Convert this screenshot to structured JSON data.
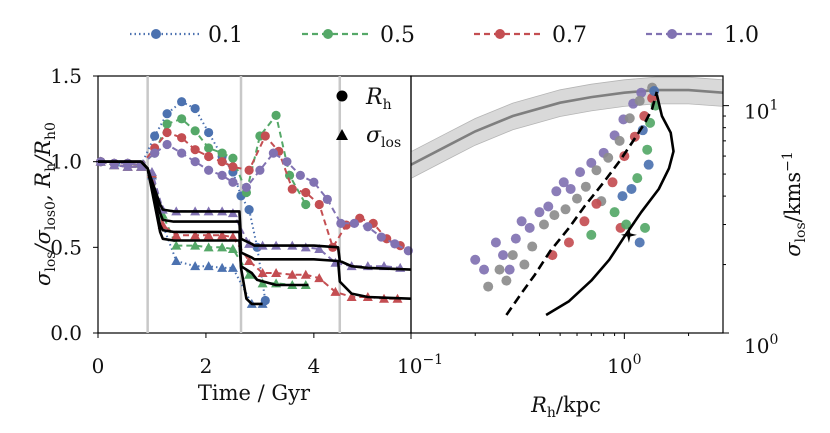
{
  "chart_data": [
    {
      "type": "line",
      "panel": "left",
      "xlabel": "Time / Gyr",
      "ylabel_parts": [
        "σ",
        "los",
        "/σ",
        "los0",
        ", R",
        "h",
        "/R",
        "h0"
      ],
      "xlim": [
        0,
        5.8
      ],
      "ylim": [
        0.0,
        1.5
      ],
      "xticks": [
        0,
        2,
        4
      ],
      "xtick_labels": [
        "0",
        "2",
        "4"
      ],
      "yticks": [
        0.0,
        0.5,
        1.0,
        1.5
      ],
      "ytick_labels": [
        "0.0",
        "0.5",
        "1.0",
        "1.5"
      ],
      "pericentres": [
        0.92,
        2.65,
        4.48
      ],
      "legend_inner": {
        "rh_label": "R",
        "rh_sub": "h",
        "sig_label": "σ",
        "sig_sub": "los"
      },
      "legend_top": [
        {
          "label": "0.1",
          "color": "#4c72b0",
          "style": "dotted"
        },
        {
          "label": "0.5",
          "color": "#55a868",
          "style": "dashed"
        },
        {
          "label": "0.7",
          "color": "#c44e52",
          "style": "dashed"
        },
        {
          "label": "1.0",
          "color": "#8172b2",
          "style": "dashed"
        }
      ],
      "series": [
        {
          "name": "0.1",
          "color": "#4c72b0",
          "style": "dotted",
          "marker": "circle",
          "x": [
            0.05,
            0.3,
            0.55,
            0.8,
            1.05,
            1.28,
            1.55,
            1.8,
            2.05,
            2.3,
            2.5,
            2.65,
            2.8,
            2.95,
            3.1
          ],
          "y": [
            1.0,
            0.99,
            0.99,
            0.98,
            1.15,
            1.28,
            1.35,
            1.31,
            1.17,
            1.03,
            0.94,
            0.8,
            0.72,
            0.5,
            0.19
          ]
        },
        {
          "name": "0.1",
          "color": "#4c72b0",
          "style": "dotted",
          "marker": "triangle",
          "x": [
            0.05,
            0.3,
            0.55,
            0.8,
            1.0,
            1.2,
            1.45,
            1.8,
            2.05,
            2.3,
            2.5,
            2.85,
            3.05
          ],
          "y": [
            1.0,
            0.98,
            0.97,
            0.97,
            0.92,
            0.63,
            0.42,
            0.39,
            0.39,
            0.38,
            0.38,
            0.17,
            0.17
          ]
        },
        {
          "name": "0.5",
          "color": "#55a868",
          "style": "dashed",
          "marker": "circle",
          "x": [
            0.05,
            0.3,
            0.55,
            0.8,
            1.05,
            1.28,
            1.55,
            1.8,
            2.05,
            2.3,
            2.5,
            2.75,
            3.0,
            3.3,
            3.55,
            3.85
          ],
          "y": [
            1.0,
            0.99,
            0.99,
            0.98,
            1.05,
            1.22,
            1.25,
            1.18,
            1.08,
            1.05,
            1.02,
            0.82,
            1.15,
            1.27,
            0.92,
            0.75
          ]
        },
        {
          "name": "0.5",
          "color": "#55a868",
          "style": "dashed",
          "marker": "triangle",
          "x": [
            0.05,
            0.3,
            0.55,
            0.8,
            1.0,
            1.2,
            1.45,
            1.8,
            2.05,
            2.3,
            2.5,
            2.8,
            3.05,
            3.3,
            3.6,
            3.85
          ],
          "y": [
            1.0,
            0.98,
            0.97,
            0.97,
            0.93,
            0.69,
            0.51,
            0.51,
            0.5,
            0.5,
            0.49,
            0.34,
            0.29,
            0.29,
            0.28,
            0.28
          ]
        },
        {
          "name": "0.7",
          "color": "#c44e52",
          "style": "dashed",
          "marker": "circle",
          "x": [
            0.05,
            0.3,
            0.55,
            0.8,
            1.05,
            1.28,
            1.55,
            1.8,
            2.05,
            2.3,
            2.5,
            2.8,
            3.1,
            3.35,
            3.6,
            3.85,
            4.1,
            4.35,
            4.6,
            4.85,
            5.1,
            5.35,
            5.6
          ],
          "y": [
            1.0,
            0.99,
            0.99,
            0.98,
            1.08,
            1.17,
            1.14,
            1.07,
            1.03,
            1.0,
            0.97,
            0.95,
            1.15,
            1.06,
            0.84,
            0.82,
            0.75,
            0.5,
            0.63,
            0.67,
            0.64,
            0.55,
            0.51
          ]
        },
        {
          "name": "0.7",
          "color": "#c44e52",
          "style": "dashed",
          "marker": "triangle",
          "x": [
            0.05,
            0.3,
            0.55,
            0.8,
            1.0,
            1.2,
            1.45,
            1.8,
            2.05,
            2.3,
            2.5,
            2.8,
            3.05,
            3.3,
            3.6,
            3.85,
            4.1,
            4.4,
            4.7,
            5.0,
            5.3,
            5.55
          ],
          "y": [
            1.0,
            0.98,
            0.97,
            0.97,
            0.93,
            0.63,
            0.57,
            0.57,
            0.57,
            0.57,
            0.56,
            0.42,
            0.35,
            0.35,
            0.34,
            0.34,
            0.32,
            0.24,
            0.21,
            0.21,
            0.2,
            0.2
          ]
        },
        {
          "name": "1.0",
          "color": "#8172b2",
          "style": "dashed",
          "marker": "circle",
          "x": [
            0.05,
            0.3,
            0.55,
            0.8,
            1.05,
            1.28,
            1.55,
            1.8,
            2.05,
            2.3,
            2.5,
            2.75,
            3.0,
            3.25,
            3.5,
            3.75,
            4.0,
            4.25,
            4.5,
            4.75,
            5.0,
            5.25,
            5.5,
            5.75
          ],
          "y": [
            1.0,
            0.99,
            0.99,
            0.98,
            1.05,
            1.1,
            1.05,
            1.0,
            0.95,
            0.92,
            0.88,
            0.85,
            0.95,
            1.05,
            1.0,
            0.92,
            0.88,
            0.78,
            0.64,
            0.64,
            0.62,
            0.56,
            0.52,
            0.48
          ]
        },
        {
          "name": "1.0",
          "color": "#8172b2",
          "style": "dashed",
          "marker": "triangle",
          "x": [
            0.05,
            0.3,
            0.55,
            0.8,
            1.0,
            1.2,
            1.45,
            1.8,
            2.05,
            2.3,
            2.5,
            2.8,
            3.05,
            3.3,
            3.6,
            3.85,
            4.1,
            4.4,
            4.7,
            5.0,
            5.3,
            5.6
          ],
          "y": [
            1.0,
            0.98,
            0.97,
            0.97,
            0.94,
            0.72,
            0.71,
            0.71,
            0.71,
            0.71,
            0.7,
            0.52,
            0.51,
            0.51,
            0.51,
            0.5,
            0.49,
            0.41,
            0.39,
            0.39,
            0.39,
            0.38
          ]
        }
      ],
      "black_curves": [
        {
          "x": [
            0,
            0.8,
            0.92,
            1.15,
            1.2,
            1.4,
            2.5,
            2.62,
            2.65,
            2.85,
            2.9,
            3.2,
            3.7,
            4.0,
            4.45,
            4.48,
            4.7,
            5.0,
            5.8
          ],
          "y": [
            1.0,
            1.0,
            0.96,
            0.75,
            0.72,
            0.71,
            0.71,
            0.71,
            0.55,
            0.52,
            0.51,
            0.51,
            0.51,
            0.51,
            0.5,
            0.42,
            0.39,
            0.38,
            0.37
          ]
        },
        {
          "x": [
            0,
            0.8,
            0.92,
            1.15,
            1.2,
            1.4,
            2.5,
            2.62,
            2.65,
            2.85,
            2.9,
            3.2,
            3.7,
            4.0,
            4.45,
            4.48,
            4.7,
            5.0,
            5.8
          ],
          "y": [
            1.0,
            1.0,
            0.96,
            0.7,
            0.66,
            0.65,
            0.65,
            0.65,
            0.47,
            0.44,
            0.43,
            0.43,
            0.43,
            0.43,
            0.42,
            0.3,
            0.23,
            0.21,
            0.2
          ]
        },
        {
          "x": [
            0,
            0.8,
            0.92,
            1.15,
            1.2,
            1.4,
            2.5,
            2.62,
            2.65,
            2.85,
            2.95,
            3.3,
            3.9
          ],
          "y": [
            1.0,
            1.0,
            0.96,
            0.63,
            0.6,
            0.59,
            0.59,
            0.59,
            0.39,
            0.35,
            0.31,
            0.28,
            0.28
          ]
        },
        {
          "x": [
            0,
            0.8,
            0.92,
            1.15,
            1.2,
            1.4,
            2.5,
            2.62,
            2.65,
            2.75,
            2.85,
            3.05
          ],
          "y": [
            1.0,
            1.0,
            0.96,
            0.59,
            0.55,
            0.54,
            0.54,
            0.54,
            0.38,
            0.2,
            0.17,
            0.17
          ]
        }
      ]
    },
    {
      "type": "scatter",
      "panel": "right",
      "xlabel_parts": [
        "R",
        "h",
        "/kpc"
      ],
      "ylabel_parts": [
        "σ",
        "los",
        "/kms",
        "−1"
      ],
      "xscale": "log",
      "yscale": "log",
      "xlim": [
        0.1,
        2.9
      ],
      "ylim": [
        1.0,
        13.5
      ],
      "xtick_labels": [
        {
          "base": "10",
          "exp": "−1"
        },
        {
          "base": "10",
          "exp": "0"
        }
      ],
      "ytick_labels": [
        {
          "base": "10",
          "exp": "0"
        },
        {
          "base": "10",
          "exp": "1"
        }
      ],
      "band": {
        "x": [
          0.1,
          0.15,
          0.2,
          0.3,
          0.5,
          0.7,
          1.0,
          1.4,
          2.0,
          2.9
        ],
        "y": [
          5.5,
          6.7,
          7.7,
          9.0,
          10.3,
          10.9,
          11.4,
          11.7,
          11.7,
          11.4
        ],
        "lo_factor": 0.87,
        "hi_factor": 1.14
      },
      "dashed_curve": {
        "x": [
          0.28,
          0.33,
          0.38,
          0.45,
          0.55,
          0.65,
          0.8,
          0.95,
          1.1,
          1.25,
          1.35,
          1.42
        ],
        "y": [
          1.2,
          1.5,
          1.8,
          2.3,
          2.9,
          3.6,
          4.6,
          5.7,
          7.0,
          8.4,
          9.7,
          11.5
        ]
      },
      "solid_curve": {
        "x": [
          0.43,
          0.55,
          0.7,
          0.85,
          1.0,
          1.2,
          1.45,
          1.62,
          1.7,
          1.65,
          1.5,
          1.42
        ],
        "y": [
          1.2,
          1.38,
          1.7,
          2.1,
          2.65,
          3.4,
          4.3,
          5.3,
          6.3,
          7.6,
          9.0,
          11.2
        ]
      },
      "star": {
        "x": 1.05,
        "y": 2.7
      },
      "points": [
        {
          "x": 0.2,
          "y": 2.1,
          "c": "#8172b2"
        },
        {
          "x": 0.22,
          "y": 1.9,
          "c": "#8172b2"
        },
        {
          "x": 0.25,
          "y": 2.5,
          "c": "#8172b2"
        },
        {
          "x": 0.27,
          "y": 2.2,
          "c": "#8172b2"
        },
        {
          "x": 0.29,
          "y": 1.9,
          "c": "#8172b2"
        },
        {
          "x": 0.31,
          "y": 2.6,
          "c": "#8172b2"
        },
        {
          "x": 0.33,
          "y": 3.1,
          "c": "#8172b2"
        },
        {
          "x": 0.36,
          "y": 2.9,
          "c": "#8172b2"
        },
        {
          "x": 0.4,
          "y": 3.4,
          "c": "#8172b2"
        },
        {
          "x": 0.44,
          "y": 3.6,
          "c": "#8172b2"
        },
        {
          "x": 0.48,
          "y": 4.2,
          "c": "#8172b2"
        },
        {
          "x": 0.52,
          "y": 4.6,
          "c": "#8172b2"
        },
        {
          "x": 0.56,
          "y": 4.3,
          "c": "#8172b2"
        },
        {
          "x": 0.62,
          "y": 5.1,
          "c": "#8172b2"
        },
        {
          "x": 0.7,
          "y": 5.6,
          "c": "#8172b2"
        },
        {
          "x": 0.8,
          "y": 6.2,
          "c": "#8172b2"
        },
        {
          "x": 0.9,
          "y": 7.4,
          "c": "#8172b2"
        },
        {
          "x": 0.99,
          "y": 8.7,
          "c": "#8172b2"
        },
        {
          "x": 1.1,
          "y": 10.2,
          "c": "#8172b2"
        },
        {
          "x": 1.2,
          "y": 11.4,
          "c": "#8172b2"
        },
        {
          "x": 0.23,
          "y": 1.6,
          "c": "#8c8c8c"
        },
        {
          "x": 0.26,
          "y": 1.9,
          "c": "#8c8c8c"
        },
        {
          "x": 0.28,
          "y": 1.7,
          "c": "#8c8c8c"
        },
        {
          "x": 0.3,
          "y": 2.2,
          "c": "#8c8c8c"
        },
        {
          "x": 0.34,
          "y": 2.0,
          "c": "#8c8c8c"
        },
        {
          "x": 0.37,
          "y": 2.4,
          "c": "#8c8c8c"
        },
        {
          "x": 0.42,
          "y": 3.0,
          "c": "#8c8c8c"
        },
        {
          "x": 0.47,
          "y": 3.3,
          "c": "#8c8c8c"
        },
        {
          "x": 0.53,
          "y": 3.5,
          "c": "#8c8c8c"
        },
        {
          "x": 0.6,
          "y": 3.9,
          "c": "#8c8c8c"
        },
        {
          "x": 0.66,
          "y": 4.4,
          "c": "#8c8c8c"
        },
        {
          "x": 0.74,
          "y": 5.2,
          "c": "#8c8c8c"
        },
        {
          "x": 0.84,
          "y": 5.9,
          "c": "#8c8c8c"
        },
        {
          "x": 0.95,
          "y": 7.0,
          "c": "#8c8c8c"
        },
        {
          "x": 1.06,
          "y": 8.8,
          "c": "#8c8c8c"
        },
        {
          "x": 1.18,
          "y": 10.5,
          "c": "#8c8c8c"
        },
        {
          "x": 1.35,
          "y": 12.0,
          "c": "#8c8c8c"
        },
        {
          "x": 0.78,
          "y": 3.8,
          "c": "#8c8c8c"
        },
        {
          "x": 0.46,
          "y": 2.2,
          "c": "#c44e52"
        },
        {
          "x": 0.55,
          "y": 2.5,
          "c": "#c44e52"
        },
        {
          "x": 0.65,
          "y": 3.1,
          "c": "#c44e52"
        },
        {
          "x": 0.74,
          "y": 3.7,
          "c": "#c44e52"
        },
        {
          "x": 0.88,
          "y": 4.6,
          "c": "#c44e52"
        },
        {
          "x": 1.0,
          "y": 6.0,
          "c": "#c44e52"
        },
        {
          "x": 1.12,
          "y": 7.3,
          "c": "#c44e52"
        },
        {
          "x": 1.24,
          "y": 9.0,
          "c": "#c44e52"
        },
        {
          "x": 1.35,
          "y": 10.8,
          "c": "#c44e52"
        },
        {
          "x": 0.96,
          "y": 2.9,
          "c": "#c44e52"
        },
        {
          "x": 0.7,
          "y": 2.7,
          "c": "#55a868"
        },
        {
          "x": 0.9,
          "y": 3.4,
          "c": "#55a868"
        },
        {
          "x": 1.02,
          "y": 3.0,
          "c": "#55a868"
        },
        {
          "x": 1.15,
          "y": 4.8,
          "c": "#55a868"
        },
        {
          "x": 1.28,
          "y": 6.4,
          "c": "#55a868"
        },
        {
          "x": 1.32,
          "y": 8.4,
          "c": "#55a868"
        },
        {
          "x": 1.4,
          "y": 10.0,
          "c": "#55a868"
        },
        {
          "x": 1.25,
          "y": 2.9,
          "c": "#55a868"
        },
        {
          "x": 1.08,
          "y": 4.3,
          "c": "#4c72b0"
        },
        {
          "x": 1.18,
          "y": 2.5,
          "c": "#4c72b0"
        },
        {
          "x": 1.3,
          "y": 5.5,
          "c": "#4c72b0"
        },
        {
          "x": 1.22,
          "y": 7.8,
          "c": "#4c72b0"
        },
        {
          "x": 1.38,
          "y": 11.6,
          "c": "#4c72b0"
        },
        {
          "x": 0.98,
          "y": 4.0,
          "c": "#4c72b0"
        }
      ]
    }
  ]
}
